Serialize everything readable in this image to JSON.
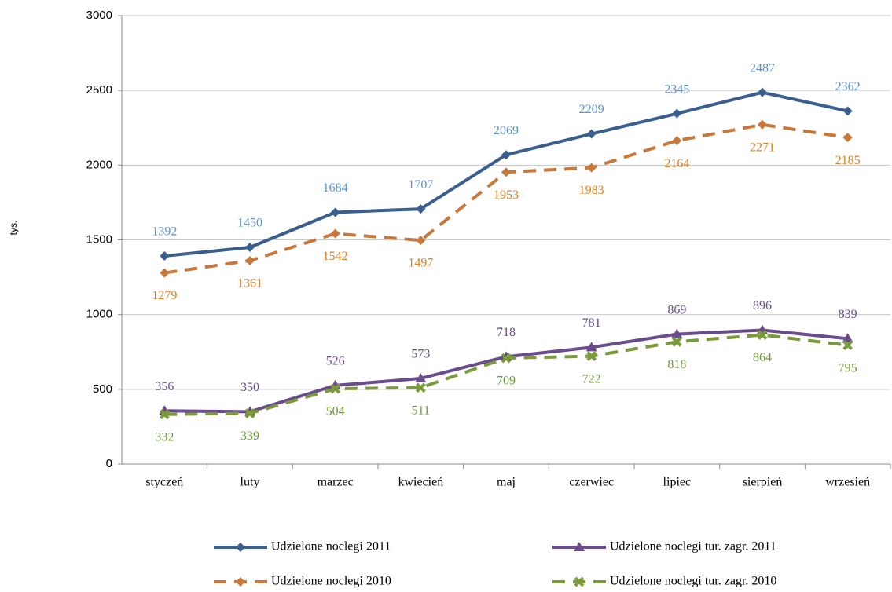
{
  "chart_data": {
    "type": "line",
    "y_label": "tys.",
    "categories": [
      "styczeń",
      "luty",
      "marzec",
      "kwiecień",
      "maj",
      "czerwiec",
      "lipiec",
      "sierpień",
      "wrzesień"
    ],
    "series": [
      {
        "name": "Udzielone noclegi 2011",
        "color": "#3a5f8f",
        "label_color": "#5a93d0",
        "dash": false,
        "marker": "diamond",
        "label_pos": "above",
        "values": [
          1392,
          1450,
          1684,
          1707,
          2069,
          2209,
          2345,
          2487,
          2362
        ]
      },
      {
        "name": "Udzielone noclegi 2010",
        "color": "#c8783a",
        "label_color": "#e07f22",
        "dash": true,
        "marker": "diamond",
        "label_pos": "below",
        "values": [
          1279,
          1361,
          1542,
          1497,
          1953,
          1983,
          2164,
          2271,
          2185
        ]
      },
      {
        "name": "Udzielone noclegi tur. zagr. 2011",
        "color": "#6a4c8c",
        "label_color": "#654f8a",
        "dash": false,
        "marker": "triangle",
        "label_pos": "above",
        "values": [
          356,
          350,
          526,
          573,
          718,
          781,
          869,
          896,
          839
        ]
      },
      {
        "name": "Udzielone noclegi tur. zagr. 2010",
        "color": "#7a9a3c",
        "label_color": "#6e9a34",
        "dash": true,
        "marker": "x",
        "label_pos": "below",
        "values": [
          332,
          339,
          504,
          511,
          709,
          722,
          818,
          864,
          795
        ]
      }
    ],
    "ylim": [
      0,
      3000
    ],
    "yticks": [
      0,
      500,
      1000,
      1500,
      2000,
      2500,
      3000
    ],
    "grid": true
  }
}
